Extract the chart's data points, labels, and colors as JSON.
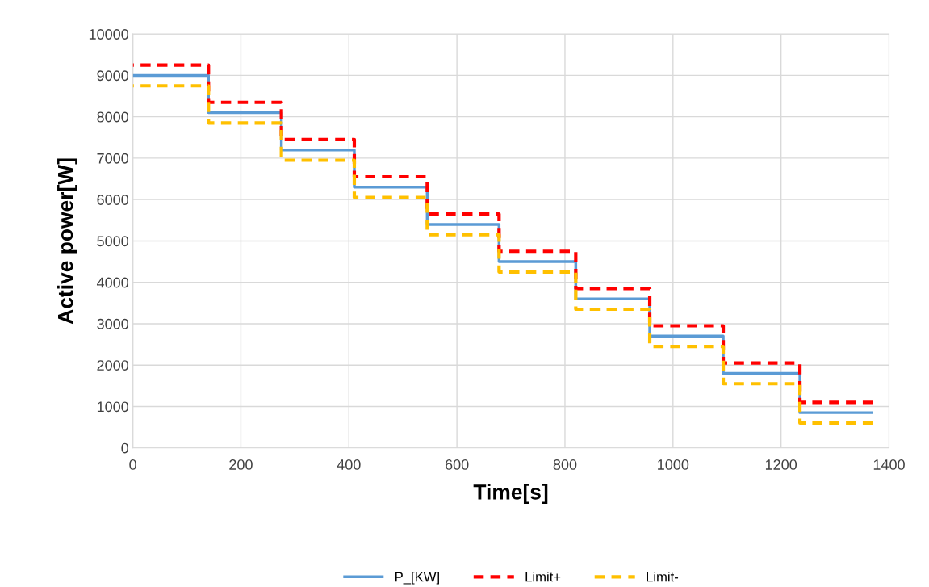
{
  "chart_data": {
    "type": "step",
    "xlabel": "Time[s]",
    "ylabel": "Active power[W]",
    "xlim": [
      0,
      1400
    ],
    "xticks": [
      0,
      200,
      400,
      600,
      800,
      1000,
      1200,
      1400
    ],
    "ylim": [
      0,
      10000
    ],
    "yticks": [
      0,
      1000,
      2000,
      3000,
      4000,
      5000,
      6000,
      7000,
      8000,
      9000,
      10000
    ],
    "grid": true,
    "legend": "bottom",
    "marker": "none",
    "x": [
      0,
      140,
      275,
      410,
      545,
      678,
      820,
      957,
      1093,
      1235,
      1370
    ],
    "series": [
      {
        "name": "P_[KW]",
        "color": "#5b9bd5",
        "line_style": "solid",
        "values": [
          9000,
          8100,
          7200,
          6300,
          5400,
          4500,
          3600,
          2700,
          1800,
          850,
          850
        ]
      },
      {
        "name": "Limit+",
        "color": "#ff0000",
        "line_style": "dashed",
        "values": [
          9250,
          8350,
          7450,
          6550,
          5650,
          4750,
          3850,
          2950,
          2050,
          1100,
          1100
        ]
      },
      {
        "name": "Limit-",
        "color": "#ffc000",
        "line_style": "dashed",
        "values": [
          8750,
          7850,
          6950,
          6050,
          5150,
          4250,
          3350,
          2450,
          1550,
          600,
          600
        ]
      }
    ]
  }
}
